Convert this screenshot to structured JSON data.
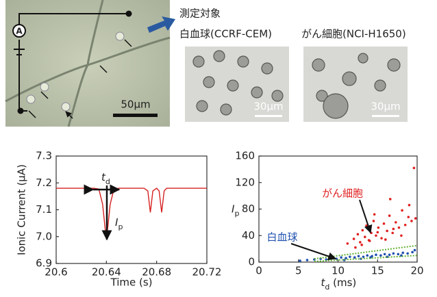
{
  "figure": {
    "target_label": "測定対象",
    "wbc_label": "白血球(CCRF-CEM)",
    "cancer_label": "がん細胞(NCI-H1650)",
    "ammeter": "A",
    "scale_main": "50μm",
    "scale_wbc": "30μm",
    "scale_cancer": "30μm"
  },
  "chart_data": [
    {
      "type": "line",
      "ylabel": "Ionic Current (μA)",
      "xlabel": "Time (s)",
      "annotations": [
        {
          "text": "t",
          "sub": "d"
        },
        {
          "text": "I",
          "sub": "p"
        }
      ],
      "xlim": [
        20.6,
        20.72
      ],
      "xticks": [
        20.6,
        20.64,
        20.68,
        20.72
      ],
      "ylim": [
        6.9,
        7.3
      ],
      "yticks": [
        {
          "value": 6.9,
          "label": "6.9"
        },
        {
          "value": 7,
          "label": "7.0"
        },
        {
          "value": 7.1,
          "label": "7.1"
        },
        {
          "value": 7.2,
          "label": "7.2"
        },
        {
          "value": 7.3,
          "label": "7.3"
        }
      ],
      "x": [
        20.6,
        20.63,
        20.634,
        20.637,
        20.639,
        20.64,
        20.641,
        20.643,
        20.646,
        20.65,
        20.67,
        20.673,
        20.675,
        20.677,
        20.68,
        20.682,
        20.684,
        20.686,
        20.688,
        20.69,
        20.72
      ],
      "series": [
        {
          "color": "#d62020",
          "values": [
            7.18,
            7.18,
            7.177,
            7.12,
            7.03,
            7.0,
            7.03,
            7.12,
            7.177,
            7.18,
            7.18,
            7.17,
            7.09,
            7.17,
            7.18,
            7.17,
            7.09,
            7.17,
            7.18,
            7.18,
            7.18
          ]
        }
      ]
    },
    {
      "type": "scatter",
      "ylabel": {
        "text": "I",
        "sub": "p"
      },
      "xlabel": {
        "text": "t",
        "sub": "d",
        "unit": " (ms)"
      },
      "annotations": [
        {
          "text": "がん細胞",
          "color": "#e02020"
        },
        {
          "text": "白血球",
          "color": "#2050b0"
        }
      ],
      "xlim": [
        0,
        20
      ],
      "xticks": [
        0,
        5,
        10,
        15,
        20
      ],
      "ylim": [
        0,
        160
      ],
      "yticks": [
        0,
        40,
        80,
        120,
        160
      ],
      "series": [
        {
          "color": "#e02020",
          "x": [
            11.2,
            12.0,
            12.5,
            12.8,
            13.1,
            13.4,
            13.6,
            13.9,
            14.2,
            14.5,
            14.8,
            15.1,
            15.5,
            15.8,
            16.2,
            16.5,
            16.9,
            17.3,
            17.7,
            18.1,
            18.5,
            18.9,
            19.3,
            19.6,
            13.0,
            14.0,
            15.0,
            16.0,
            17.0,
            18.0,
            19.0,
            12.2,
            14.6,
            16.6,
            19.8
          ],
          "values": [
            28,
            35,
            42,
            30,
            48,
            38,
            55,
            33,
            44,
            62,
            40,
            52,
            36,
            58,
            47,
            70,
            44,
            60,
            52,
            78,
            56,
            68,
            62,
            142,
            26,
            32,
            45,
            34,
            50,
            40,
            86,
            22,
            72,
            95,
            66
          ]
        },
        {
          "color": "#2050b0",
          "x": [
            5.2,
            6.1,
            7.0,
            7.8,
            8.5,
            9.2,
            9.8,
            10.4,
            11.0,
            11.5,
            12.1,
            12.6,
            13.2,
            13.7,
            14.3,
            14.8,
            15.4,
            15.9,
            16.5,
            17.0,
            17.6,
            18.2,
            18.8,
            19.4,
            10.8,
            12.9,
            14.1,
            16.2,
            18.0,
            19.7
          ],
          "values": [
            2,
            3,
            4,
            5,
            4,
            6,
            5,
            7,
            6,
            8,
            7,
            9,
            8,
            10,
            9,
            11,
            10,
            12,
            11,
            13,
            12,
            14,
            13,
            15,
            3,
            5,
            7,
            8,
            10,
            18
          ]
        },
        {
          "color": "#60b030",
          "line": true,
          "x": [
            7,
            20
          ],
          "values": [
            5,
            25
          ]
        },
        {
          "color": "#60b030",
          "line": true,
          "x": [
            7,
            20
          ],
          "values": [
            1,
            10
          ]
        }
      ]
    }
  ]
}
